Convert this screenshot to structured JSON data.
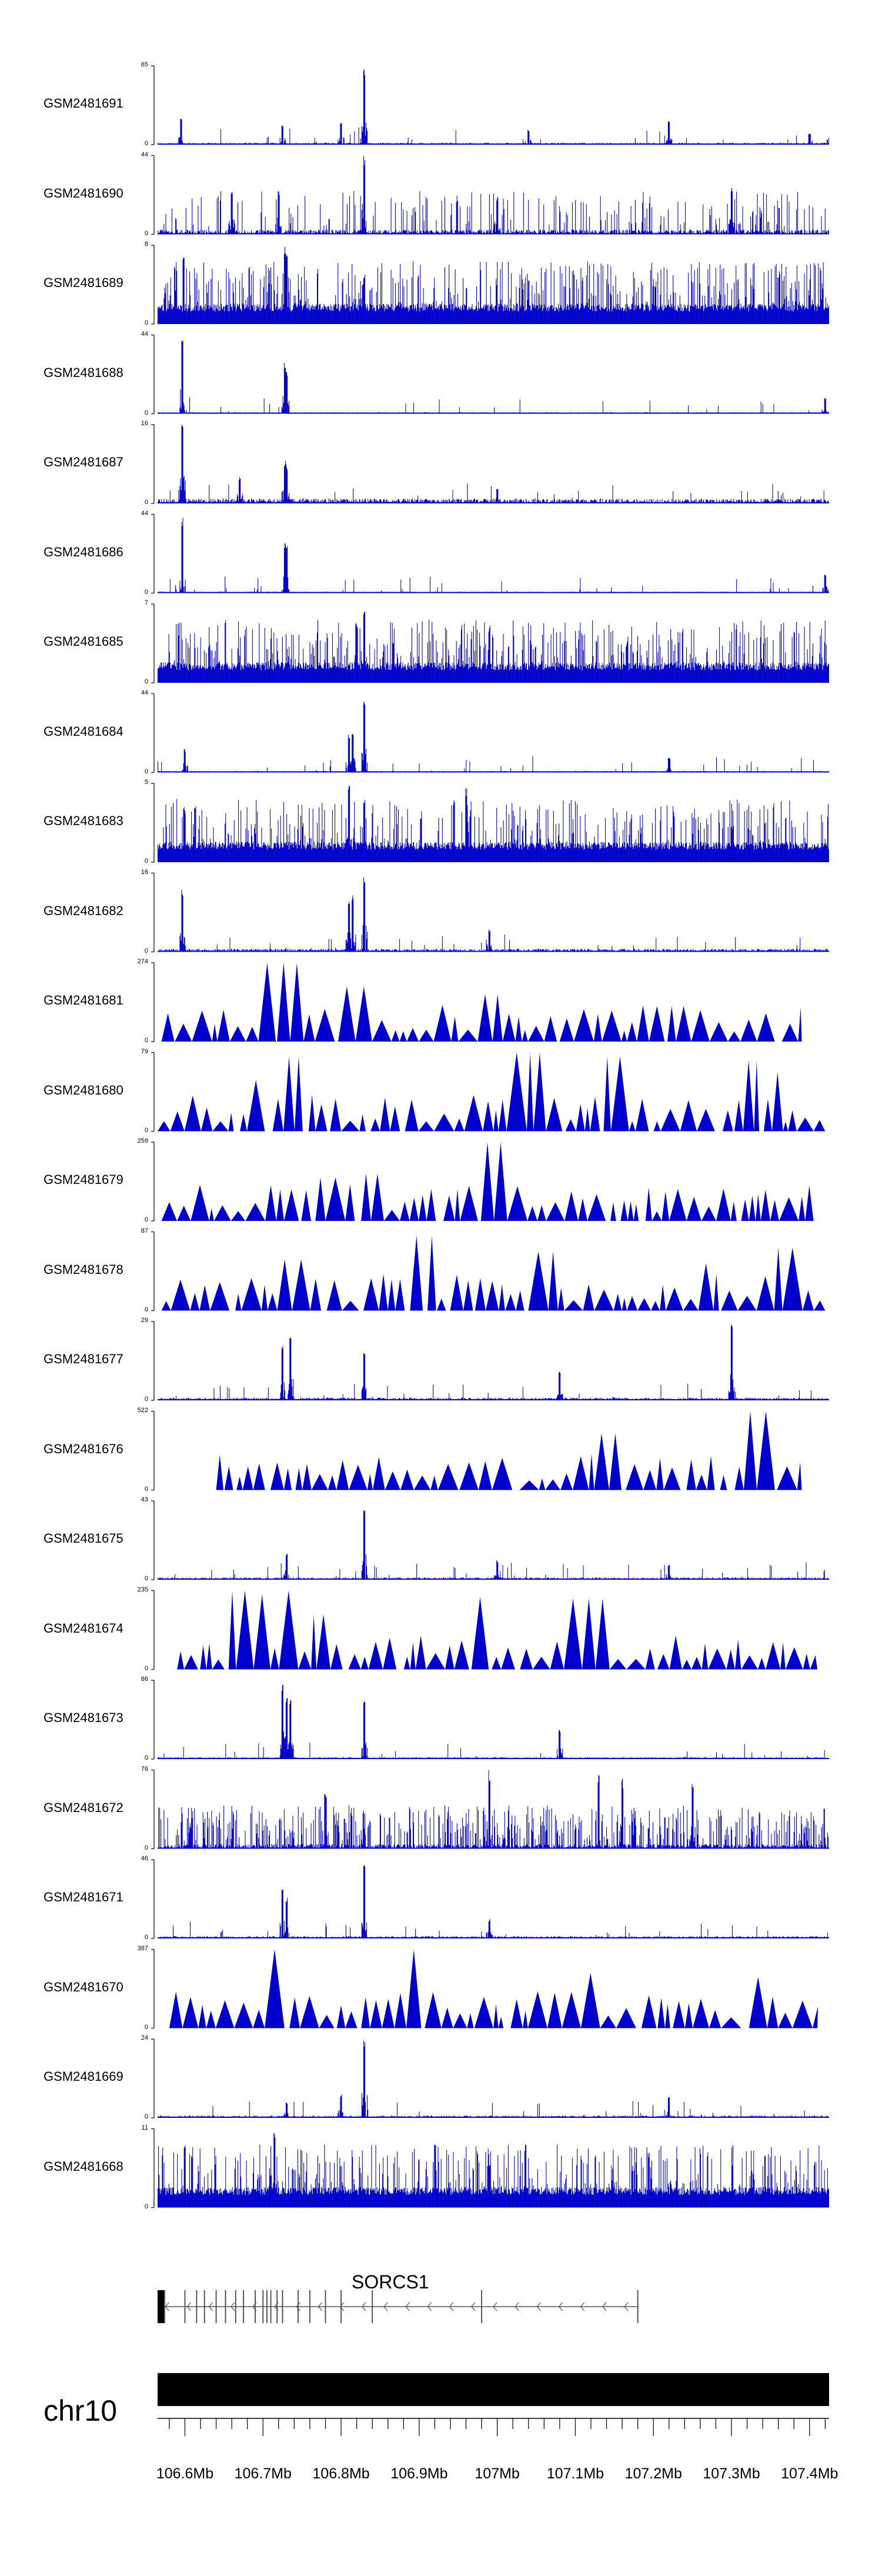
{
  "chart_data": {
    "type": "area",
    "x_unit": "Mb",
    "xlim": [
      106.565,
      107.425
    ],
    "chromosome": "chr10",
    "colors": {
      "signal": "#0000cc",
      "axis": "#000000",
      "gene": "#555555",
      "chrom_band": "#000000"
    },
    "tracks": [
      {
        "name": "GSM2481691",
        "ymin": 0,
        "ymax": 65,
        "style": "peaks",
        "noise": 0.05,
        "peaks": [
          [
            106.595,
            0.35
          ],
          [
            106.725,
            0.25
          ],
          [
            106.8,
            0.3
          ],
          [
            106.83,
            1.0
          ],
          [
            107.04,
            0.2
          ],
          [
            107.22,
            0.3
          ],
          [
            107.4,
            0.15
          ]
        ]
      },
      {
        "name": "GSM2481690",
        "ymin": 0,
        "ymax": 44,
        "style": "bars",
        "noise": 0.15,
        "peaks": [
          [
            106.83,
            1.0
          ],
          [
            106.66,
            0.6
          ],
          [
            106.72,
            0.55
          ],
          [
            107.0,
            0.5
          ],
          [
            107.3,
            0.6
          ]
        ]
      },
      {
        "name": "GSM2481689",
        "ymin": 0,
        "ymax": 8,
        "style": "dense",
        "noise": 0.35,
        "peaks": [
          [
            106.598,
            0.95
          ],
          [
            106.728,
            1.0
          ],
          [
            106.73,
            0.9
          ],
          [
            106.83,
            0.6
          ]
        ]
      },
      {
        "name": "GSM2481688",
        "ymin": 0,
        "ymax": 44,
        "style": "peaks",
        "noise": 0.04,
        "peaks": [
          [
            106.597,
            1.0
          ],
          [
            106.728,
            0.65
          ],
          [
            106.73,
            0.55
          ],
          [
            107.42,
            0.2
          ]
        ]
      },
      {
        "name": "GSM2481687",
        "ymin": 0,
        "ymax": 16,
        "style": "peaks",
        "noise": 0.12,
        "peaks": [
          [
            106.597,
            1.0
          ],
          [
            106.728,
            0.55
          ],
          [
            106.73,
            0.5
          ],
          [
            106.67,
            0.35
          ],
          [
            107.0,
            0.2
          ]
        ]
      },
      {
        "name": "GSM2481686",
        "ymin": 0,
        "ymax": 44,
        "style": "peaks",
        "noise": 0.04,
        "peaks": [
          [
            106.597,
            1.0
          ],
          [
            106.728,
            0.65
          ],
          [
            106.73,
            0.6
          ],
          [
            107.42,
            0.25
          ]
        ]
      },
      {
        "name": "GSM2481685",
        "ymin": 0,
        "ymax": 7,
        "style": "dense",
        "noise": 0.3,
        "peaks": [
          [
            106.83,
            1.0
          ],
          [
            106.82,
            0.8
          ],
          [
            106.99,
            0.75
          ]
        ]
      },
      {
        "name": "GSM2481684",
        "ymin": 0,
        "ymax": 44,
        "style": "peaks",
        "noise": 0.04,
        "peaks": [
          [
            106.6,
            0.3
          ],
          [
            106.81,
            0.5
          ],
          [
            106.815,
            0.55
          ],
          [
            106.83,
            1.0
          ],
          [
            107.22,
            0.2
          ]
        ]
      },
      {
        "name": "GSM2481683",
        "ymin": 0,
        "ymax": 5,
        "style": "dense",
        "noise": 0.3,
        "peaks": [
          [
            106.81,
            1.0
          ],
          [
            106.83,
            0.85
          ],
          [
            106.96,
            0.95
          ],
          [
            106.6,
            0.7
          ]
        ]
      },
      {
        "name": "GSM2481682",
        "ymin": 0,
        "ymax": 16,
        "style": "peaks",
        "noise": 0.08,
        "peaks": [
          [
            106.597,
            0.8
          ],
          [
            106.81,
            0.7
          ],
          [
            106.815,
            0.75
          ],
          [
            106.83,
            1.0
          ],
          [
            106.99,
            0.3
          ]
        ]
      },
      {
        "name": "GSM2481681",
        "ymin": 0,
        "ymax": 274,
        "style": "triangles",
        "xrange": [
          106.57,
          107.39
        ],
        "peaks": [
          [
            106.727,
            1.0
          ],
          [
            106.74,
            0.5
          ],
          [
            106.82,
            0.7
          ],
          [
            106.99,
            0.6
          ],
          [
            107.22,
            0.45
          ],
          [
            107.25,
            0.4
          ],
          [
            107.35,
            0.3
          ]
        ]
      },
      {
        "name": "GSM2481680",
        "ymin": 0,
        "ymax": 79,
        "style": "triangles",
        "xrange": [
          106.565,
          107.42
        ],
        "peaks": [
          [
            106.74,
            0.95
          ],
          [
            106.69,
            0.65
          ],
          [
            107.04,
            1.0
          ],
          [
            107.15,
            0.95
          ],
          [
            107.33,
            0.9
          ],
          [
            107.36,
            0.75
          ]
        ]
      },
      {
        "name": "GSM2481679",
        "ymin": 0,
        "ymax": 259,
        "style": "triangles",
        "xrange": [
          106.57,
          107.41
        ],
        "peaks": [
          [
            106.99,
            1.0
          ],
          [
            106.83,
            0.6
          ],
          [
            106.78,
            0.55
          ],
          [
            106.725,
            0.4
          ],
          [
            107.37,
            0.3
          ]
        ]
      },
      {
        "name": "GSM2481678",
        "ymin": 0,
        "ymax": 87,
        "style": "triangles",
        "xrange": [
          106.57,
          107.42
        ],
        "peaks": [
          [
            106.91,
            0.95
          ],
          [
            106.73,
            0.65
          ],
          [
            107.06,
            0.75
          ],
          [
            107.37,
            0.8
          ],
          [
            107.27,
            0.6
          ]
        ]
      },
      {
        "name": "GSM2481677",
        "ymin": 0,
        "ymax": 29,
        "style": "peaks",
        "noise": 0.07,
        "peaks": [
          [
            106.725,
            0.75
          ],
          [
            106.735,
            0.8
          ],
          [
            106.83,
            0.6
          ],
          [
            107.3,
            1.0
          ],
          [
            107.08,
            0.4
          ]
        ]
      },
      {
        "name": "GSM2481676",
        "ymin": 0,
        "ymax": 522,
        "style": "triangles",
        "xrange": [
          106.64,
          107.39
        ],
        "peaks": [
          [
            106.72,
            0.35
          ],
          [
            106.81,
            0.32
          ],
          [
            106.98,
            0.35
          ],
          [
            107.15,
            0.72
          ],
          [
            107.33,
            1.0
          ],
          [
            107.35,
            0.3
          ]
        ]
      },
      {
        "name": "GSM2481675",
        "ymin": 0,
        "ymax": 43,
        "style": "peaks",
        "noise": 0.06,
        "peaks": [
          [
            106.83,
            1.0
          ],
          [
            106.73,
            0.35
          ],
          [
            107.0,
            0.25
          ],
          [
            107.22,
            0.2
          ]
        ]
      },
      {
        "name": "GSM2481674",
        "ymin": 0,
        "ymax": 235,
        "style": "triangles",
        "xrange": [
          106.59,
          107.41
        ],
        "peaks": [
          [
            106.665,
            1.0
          ],
          [
            106.73,
            1.0
          ],
          [
            106.69,
            0.95
          ],
          [
            106.98,
            0.92
          ],
          [
            107.12,
            0.9
          ],
          [
            106.77,
            0.7
          ]
        ]
      },
      {
        "name": "GSM2481673",
        "ymin": 0,
        "ymax": 86,
        "style": "peaks",
        "noise": 0.05,
        "peaks": [
          [
            106.725,
            1.0
          ],
          [
            106.73,
            0.8
          ],
          [
            106.735,
            0.75
          ],
          [
            106.83,
            0.8
          ],
          [
            107.08,
            0.4
          ]
        ]
      },
      {
        "name": "GSM2481672",
        "ymin": 0,
        "ymax": 76,
        "style": "bars",
        "noise": 0.35,
        "peaks": [
          [
            106.99,
            1.0
          ],
          [
            107.13,
            0.95
          ],
          [
            107.16,
            0.9
          ],
          [
            107.25,
            0.9
          ],
          [
            106.78,
            0.75
          ]
        ]
      },
      {
        "name": "GSM2481671",
        "ymin": 0,
        "ymax": 46,
        "style": "peaks",
        "noise": 0.06,
        "peaks": [
          [
            106.83,
            1.0
          ],
          [
            106.725,
            0.65
          ],
          [
            106.73,
            0.55
          ],
          [
            106.99,
            0.25
          ]
        ]
      },
      {
        "name": "GSM2481670",
        "ymin": 0,
        "ymax": 387,
        "style": "triangles",
        "xrange": [
          106.58,
          107.41
        ],
        "peaks": [
          [
            106.72,
            1.0
          ],
          [
            106.895,
            1.0
          ],
          [
            107.12,
            0.7
          ],
          [
            107.33,
            0.65
          ],
          [
            107.09,
            0.45
          ],
          [
            107.39,
            0.35
          ]
        ]
      },
      {
        "name": "GSM2481669",
        "ymin": 0,
        "ymax": 24,
        "style": "peaks",
        "noise": 0.06,
        "peaks": [
          [
            106.83,
            1.0
          ],
          [
            106.8,
            0.3
          ],
          [
            106.73,
            0.2
          ],
          [
            107.22,
            0.3
          ]
        ]
      },
      {
        "name": "GSM2481668",
        "ymin": 0,
        "ymax": 11,
        "style": "dense",
        "noise": 0.3,
        "peaks": [
          [
            106.715,
            0.95
          ],
          [
            106.6,
            0.85
          ],
          [
            106.92,
            0.8
          ]
        ]
      }
    ],
    "gene": {
      "name": "SORCS1",
      "strand": "-",
      "start": 106.565,
      "end": 107.18,
      "exons": [
        106.568,
        106.571,
        106.574,
        106.6,
        106.615,
        106.625,
        106.64,
        106.652,
        106.665,
        106.675,
        106.69,
        106.7,
        106.705,
        106.71,
        106.718,
        106.725,
        106.745,
        106.76,
        106.78,
        106.8,
        106.84,
        106.98,
        107.18
      ]
    },
    "axis": {
      "ticks": [
        106.6,
        106.7,
        106.8,
        106.9,
        107.0,
        107.1,
        107.2,
        107.3,
        107.4
      ],
      "tick_labels": [
        "106.6Mb",
        "106.7Mb",
        "106.8Mb",
        "106.9Mb",
        "107Mb",
        "107.1Mb",
        "107.2Mb",
        "107.3Mb",
        "107.4Mb"
      ],
      "minor_step": 0.02
    }
  }
}
